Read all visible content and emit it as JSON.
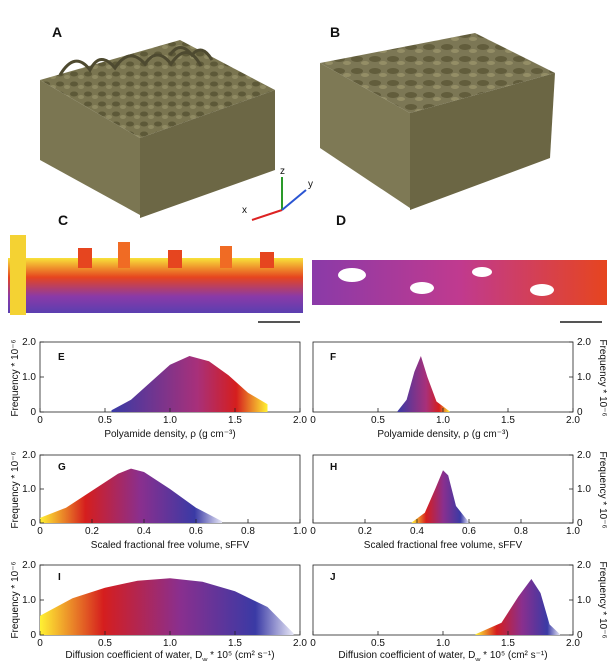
{
  "panels": {
    "A": "A",
    "B": "B",
    "C": "C",
    "D": "D",
    "E": "E",
    "F": "F",
    "G": "G",
    "H": "H",
    "I": "I",
    "J": "J"
  },
  "triad": {
    "x": "x",
    "y": "y",
    "z": "z"
  },
  "colors": {
    "mesh": "#777250",
    "mesh_shadow": "#4e4a30",
    "grad_low": "#fff133",
    "grad_mid": "#d51e1e",
    "grad_high": "#3a3aa5"
  },
  "figure": {
    "ylabel_left": "Frequency * 10⁻⁶",
    "ylabel_right": "Frequency * 10⁻⁶"
  },
  "chart_data": [
    {
      "panel": "E",
      "type": "area",
      "side": "left",
      "xlabel": "Polyamide density, ρ (g cm⁻³)",
      "xlim": [
        0,
        2.0
      ],
      "ylim": [
        0,
        2.0
      ],
      "xticks": [
        "0",
        "0.5",
        "1.0",
        "1.5",
        "2.0"
      ],
      "yticks": [
        "0",
        "1.0",
        "2.0"
      ],
      "x": [
        0.55,
        0.7,
        0.85,
        1.0,
        1.15,
        1.3,
        1.45,
        1.6,
        1.75
      ],
      "y": [
        0.05,
        0.35,
        0.85,
        1.35,
        1.6,
        1.45,
        1.05,
        0.55,
        0.22
      ],
      "gradient": "high-to-low"
    },
    {
      "panel": "F",
      "type": "area",
      "side": "right",
      "xlabel": "Polyamide density, ρ (g cm⁻³)",
      "xlim": [
        0,
        2.0
      ],
      "ylim": [
        0,
        2.0
      ],
      "xticks": [
        "0",
        "0.5",
        "1.0",
        "1.5",
        "2.0"
      ],
      "yticks": [
        "0",
        "1.0",
        "2.0"
      ],
      "x": [
        0.65,
        0.72,
        0.78,
        0.83,
        0.88,
        0.95,
        1.05
      ],
      "y": [
        0.02,
        0.35,
        1.15,
        1.6,
        1.0,
        0.3,
        0.02
      ],
      "gradient": "high-to-low"
    },
    {
      "panel": "G",
      "type": "area",
      "side": "left",
      "xlabel": "Scaled fractional free volume, sFFV",
      "xlim": [
        0,
        1.0
      ],
      "ylim": [
        0,
        2.0
      ],
      "xticks": [
        "0",
        "0.2",
        "0.4",
        "0.6",
        "0.8",
        "1.0"
      ],
      "yticks": [
        "0",
        "1.0",
        "2.0"
      ],
      "x": [
        0.0,
        0.1,
        0.2,
        0.3,
        0.35,
        0.4,
        0.5,
        0.6,
        0.7
      ],
      "y": [
        0.15,
        0.45,
        0.95,
        1.45,
        1.6,
        1.5,
        1.0,
        0.45,
        0.05
      ],
      "gradient": "low-to-high"
    },
    {
      "panel": "H",
      "type": "area",
      "side": "right",
      "xlabel": "Scaled fractional free volume, sFFV",
      "xlim": [
        0,
        1.0
      ],
      "ylim": [
        0,
        2.0
      ],
      "xticks": [
        "0",
        "0.2",
        "0.4",
        "0.6",
        "0.8",
        "1.0"
      ],
      "yticks": [
        "0",
        "1.0",
        "2.0"
      ],
      "x": [
        0.38,
        0.43,
        0.47,
        0.5,
        0.52,
        0.55,
        0.6
      ],
      "y": [
        0.02,
        0.3,
        1.0,
        1.55,
        1.4,
        0.5,
        0.02
      ],
      "gradient": "low-to-high"
    },
    {
      "panel": "I",
      "type": "area",
      "side": "left",
      "xlabel": "Diffusion coefficient of water, D_w * 10⁵ (cm² s⁻¹)",
      "xlim": [
        0,
        2.0
      ],
      "ylim": [
        0,
        2.0
      ],
      "xticks": [
        "0",
        "0.5",
        "1.0",
        "1.5",
        "2.0"
      ],
      "yticks": [
        "0",
        "1.0",
        "2.0"
      ],
      "x": [
        0.0,
        0.25,
        0.5,
        0.75,
        1.0,
        1.25,
        1.5,
        1.75,
        1.95
      ],
      "y": [
        0.55,
        1.05,
        1.35,
        1.55,
        1.62,
        1.52,
        1.25,
        0.8,
        0.05
      ],
      "gradient": "low-to-high"
    },
    {
      "panel": "J",
      "type": "area",
      "side": "right",
      "xlabel": "Diffusion coefficient of water, D_w * 10⁵ (cm² s⁻¹)",
      "xlim": [
        0,
        2.0
      ],
      "ylim": [
        0,
        2.0
      ],
      "xticks": [
        "0",
        "0.5",
        "1.0",
        "1.5",
        "2.0"
      ],
      "yticks": [
        "0",
        "1.0",
        "2.0"
      ],
      "x": [
        1.25,
        1.45,
        1.58,
        1.68,
        1.75,
        1.82,
        1.9
      ],
      "y": [
        0.02,
        0.35,
        1.1,
        1.6,
        1.2,
        0.3,
        0.02
      ],
      "gradient": "low-to-high"
    }
  ]
}
